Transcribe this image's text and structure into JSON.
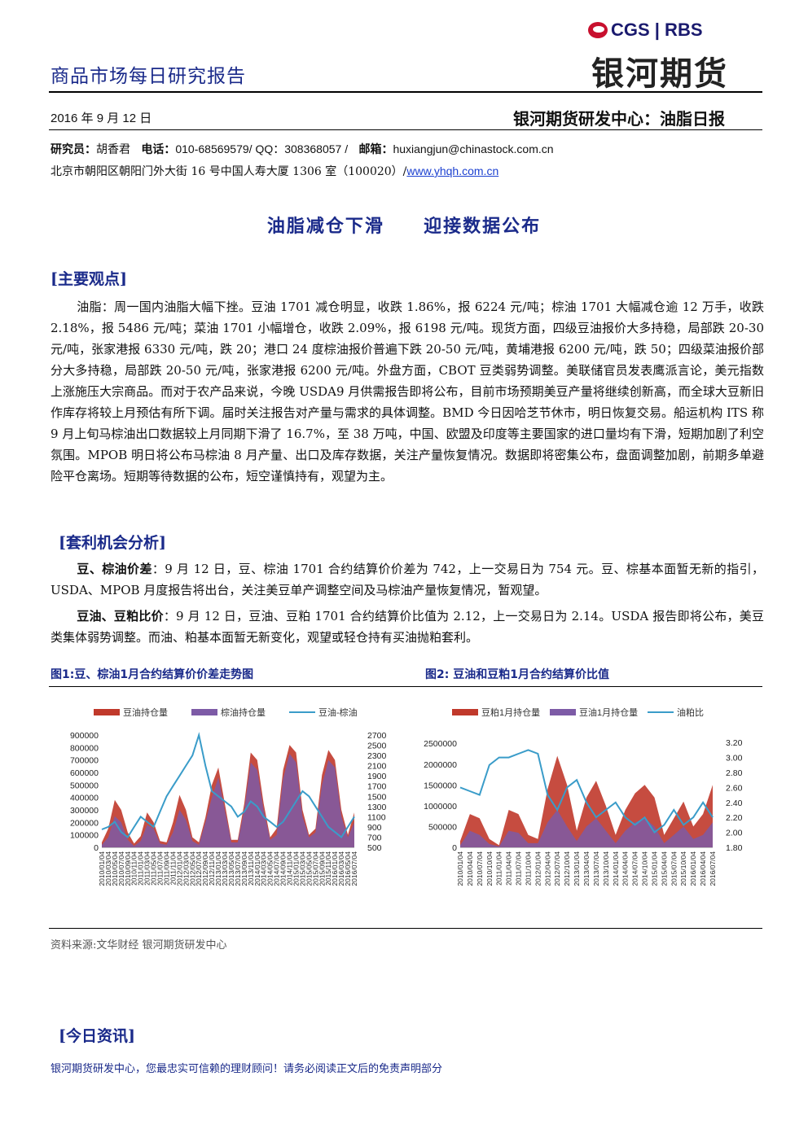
{
  "header": {
    "logo_text": "CGS | RBS",
    "logo_cn": "银河期货",
    "report_title": "商品市场每日研究报告",
    "date": "2016 年 9 月 12 日",
    "center": "银河期货研发中心：油脂日报"
  },
  "contact": {
    "researcher_label": "研究员：",
    "researcher": "胡香君",
    "phone_label": "电话：",
    "phone": "010-68569579/ QQ：308368057 /",
    "email_label": "邮箱：",
    "email": "huxiangjun@chinastock.com.cn",
    "address": "北京市朝阳区朝阳门外大街 16 号中国人寿大厦 1306 室（100020）/",
    "website": "www.yhqh.com.cn"
  },
  "main_title": {
    "left": "油脂减仓下滑",
    "right": "迎接数据公布"
  },
  "sections": {
    "view_head": "[主要观点]",
    "view_text": "油脂：周一国内油脂大幅下挫。豆油 1701 减仓明显，收跌 1.86%，报 6224 元/吨；棕油 1701 大幅减仓逾 12 万手，收跌 2.18%，报 5486 元/吨；菜油 1701 小幅增仓，收跌 2.09%，报 6198 元/吨。现货方面，四级豆油报价大多持稳，局部跌 20-30 元/吨，张家港报 6330 元/吨，跌 20；港口 24 度棕油报价普遍下跌 20-50 元/吨，黄埔港报 6200 元/吨，跌 50；四级菜油报价部分大多持稳，局部跌 20-50 元/吨，张家港报 6200 元/吨。外盘方面，CBOT 豆类弱势调整。美联储官员发表鹰派言论，美元指数上涨施压大宗商品。而对于农产品来说，今晚 USDA9 月供需报告即将公布，目前市场预期美豆产量将继续创新高，而全球大豆新旧作库存将较上月预估有所下调。届时关注报告对产量与需求的具体调整。BMD 今日因哈芝节休市，明日恢复交易。船运机构 ITS 称 9 月上旬马棕油出口数据较上月同期下滑了 16.7%，至 38 万吨，中国、欧盟及印度等主要国家的进口量均有下滑，短期加剧了利空氛围。MPOB 明日将公布马棕油 8 月产量、出口及库存数据，关注产量恢复情况。数据即将密集公布，盘面调整加剧，前期多单避险平仓离场。短期等待数据的公布，短空谨慎持有，观望为主。",
    "arb_head": "[套利机会分析]",
    "arb1_label": "豆、棕油价差",
    "arb1_text": "：9 月 12 日，豆、棕油 1701 合约结算价价差为 742，上一交易日为 754 元。豆、棕基本面暂无新的指引， USDA、MPOB 月度报告将出台，关注美豆单产调整空间及马棕油产量恢复情况，暂观望。",
    "arb2_label": "豆油、豆粕比价",
    "arb2_text": "：9 月 12 日，豆油、豆粕 1701 合约结算价比值为 2.12，上一交易日为 2.14。USDA 报告即将公布，美豆类集体弱势调整。而油、粕基本面暂无新变化，观望或轻仓持有买油抛粕套利。",
    "news_head": "[今日资讯]"
  },
  "figures": {
    "fig1_caption": "图1:豆、棕油1月合约结算价价差走势图",
    "fig2_caption": "图2: 豆油和豆粕1月合约结算价比值",
    "source": "资料来源:文华财经    银河期货研发中心"
  },
  "footer": "银河期货研发中心，您最忠实可信赖的理财顾问！请务必阅读正文后的免责声明部分",
  "chart_data": [
    {
      "type": "area",
      "legend": [
        "豆油持仓量",
        "棕油持仓量",
        "豆油-棕油"
      ],
      "colors": {
        "series1": "#c0392b",
        "series2": "#7d5ba6",
        "series3": "#3a9cc9"
      },
      "y_left_ticks": [
        "900000",
        "800000",
        "700000",
        "600000",
        "500000",
        "400000",
        "300000",
        "200000",
        "100000",
        "0"
      ],
      "y_left_range": [
        0,
        900000
      ],
      "y_right_ticks": [
        "2700",
        "2500",
        "2300",
        "2100",
        "1900",
        "1700",
        "1500",
        "1300",
        "1100",
        "900",
        "700",
        "500"
      ],
      "y_right_range": [
        500,
        2700
      ],
      "x_ticks": [
        "2010/01/04",
        "2010/03/04",
        "2010/05/04",
        "2010/07/04",
        "2010/09/04",
        "2010/11/04",
        "2011/01/04",
        "2011/03/04",
        "2011/05/04",
        "2011/07/04",
        "2011/09/04",
        "2011/11/04",
        "2012/01/04",
        "2012/03/04",
        "2012/05/04",
        "2012/07/04",
        "2012/09/04",
        "2012/11/04",
        "2013/01/04",
        "2013/03/04",
        "2013/05/04",
        "2013/07/04",
        "2013/09/04",
        "2013/11/04",
        "2014/01/04",
        "2014/03/04",
        "2014/05/04",
        "2014/07/04",
        "2014/09/04",
        "2014/11/04",
        "2015/01/04",
        "2015/03/04",
        "2015/05/04",
        "2015/07/04",
        "2015/09/04",
        "2015/11/04",
        "2016/01/04",
        "2016/03/04",
        "2016/05/04",
        "2016/07/04"
      ],
      "series": [
        {
          "name": "豆油持仓量",
          "axis": "left",
          "values": [
            40000,
            150000,
            380000,
            300000,
            120000,
            30000,
            90000,
            280000,
            200000,
            50000,
            40000,
            200000,
            420000,
            300000,
            80000,
            40000,
            240000,
            500000,
            640000,
            350000,
            60000,
            60000,
            350000,
            760000,
            700000,
            350000,
            80000,
            150000,
            620000,
            820000,
            760000,
            300000,
            100000,
            150000,
            580000,
            780000,
            700000,
            300000,
            100000,
            280000
          ]
        },
        {
          "name": "棕油持仓量",
          "axis": "left",
          "values": [
            20000,
            80000,
            250000,
            200000,
            60000,
            10000,
            50000,
            180000,
            150000,
            30000,
            20000,
            120000,
            300000,
            220000,
            50000,
            20000,
            200000,
            400000,
            560000,
            300000,
            40000,
            40000,
            300000,
            680000,
            620000,
            300000,
            60000,
            100000,
            550000,
            750000,
            680000,
            250000,
            80000,
            120000,
            500000,
            700000,
            640000,
            250000,
            80000,
            200000
          ]
        },
        {
          "name": "豆油-棕油",
          "axis": "right",
          "values": [
            850,
            900,
            1000,
            800,
            700,
            900,
            1100,
            1000,
            900,
            1200,
            1500,
            1700,
            1900,
            2100,
            2300,
            2700,
            2100,
            1600,
            1500,
            1400,
            1300,
            1100,
            1200,
            1400,
            1300,
            1100,
            1000,
            900,
            1000,
            1200,
            1400,
            1600,
            1500,
            1300,
            1100,
            900,
            800,
            700,
            900,
            1100
          ]
        }
      ]
    },
    {
      "type": "area",
      "legend": [
        "豆粕1月持仓量",
        "豆油1月持仓量",
        "油粕比"
      ],
      "colors": {
        "series1": "#c0392b",
        "series2": "#7d5ba6",
        "series3": "#3a9cc9"
      },
      "y_left_ticks": [
        "2500000",
        "2000000",
        "1500000",
        "1000000",
        "500000",
        "0"
      ],
      "y_left_range": [
        0,
        2700000
      ],
      "y_right_ticks": [
        "3.20",
        "3.00",
        "2.80",
        "2.60",
        "2.40",
        "2.20",
        "2.00",
        "1.80"
      ],
      "y_right_range": [
        1.8,
        3.3
      ],
      "x_ticks": [
        "2010/01/04",
        "2010/04/04",
        "2010/07/04",
        "2010/10/04",
        "2011/01/04",
        "2011/04/04",
        "2011/07/04",
        "2011/10/04",
        "2012/01/04",
        "2012/04/04",
        "2012/07/04",
        "2012/10/04",
        "2013/01/04",
        "2013/04/04",
        "2013/07/04",
        "2013/10/04",
        "2014/01/04",
        "2014/04/04",
        "2014/07/04",
        "2014/10/04",
        "2015/01/04",
        "2015/04/04",
        "2015/07/04",
        "2015/10/04",
        "2016/01/04",
        "2016/04/04",
        "2016/07/04"
      ],
      "series": [
        {
          "name": "豆粕1月持仓量",
          "axis": "left",
          "values": [
            150000,
            800000,
            700000,
            200000,
            50000,
            900000,
            800000,
            300000,
            200000,
            1400000,
            2200000,
            1500000,
            400000,
            1200000,
            1600000,
            1000000,
            300000,
            900000,
            1300000,
            1500000,
            1200000,
            300000,
            700000,
            1100000,
            500000,
            800000,
            1500000
          ]
        },
        {
          "name": "豆油1月持仓量",
          "axis": "left",
          "values": [
            50000,
            400000,
            300000,
            80000,
            20000,
            400000,
            350000,
            100000,
            100000,
            600000,
            900000,
            500000,
            150000,
            500000,
            700000,
            400000,
            100000,
            400000,
            600000,
            700000,
            500000,
            100000,
            300000,
            500000,
            200000,
            300000,
            600000
          ]
        },
        {
          "name": "油粕比",
          "axis": "right",
          "values": [
            2.6,
            2.55,
            2.5,
            2.9,
            3.0,
            3.0,
            3.05,
            3.1,
            3.05,
            2.5,
            2.3,
            2.6,
            2.7,
            2.4,
            2.2,
            2.3,
            2.4,
            2.2,
            2.1,
            2.2,
            2.0,
            2.1,
            2.3,
            2.1,
            2.2,
            2.4,
            2.2
          ]
        }
      ]
    }
  ]
}
